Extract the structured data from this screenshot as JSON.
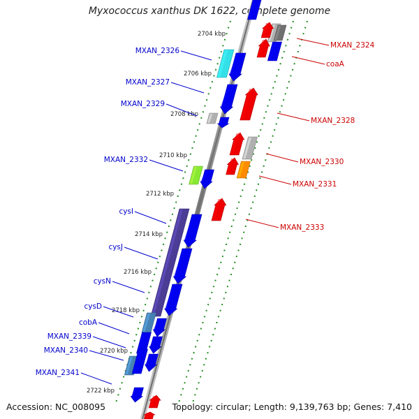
{
  "title": "Myxococcus xanthus DK 1622, complete genome",
  "footer": {
    "accession": "Accession: NC_008095",
    "summary": "Topology: circular; Length: 9,139,763 bp; Genes: 7,410"
  },
  "ticks": [
    "2704 kbp",
    "2706 kbp",
    "2708 kbp",
    "2710 kbp",
    "2712 kbp",
    "2714 kbp",
    "2716 kbp",
    "2718 kbp",
    "2720 kbp",
    "2722 kbp"
  ],
  "left_labels": [
    "MXAN_2326",
    "MXAN_2327",
    "MXAN_2329",
    "MXAN_2332",
    "cysI",
    "cysJ",
    "cysN",
    "cysD",
    "cobA",
    "MXAN_2339",
    "MXAN_2340",
    "MXAN_2341"
  ],
  "right_labels": [
    "MXAN_2324",
    "coaA",
    "MXAN_2328",
    "MXAN_2330",
    "MXAN_2331",
    "MXAN_2333"
  ],
  "colors": {
    "forward_gene": "#0000ee",
    "reverse_gene": "#ee0000",
    "left_label": "#0000cc",
    "right_label": "#cc0000",
    "guide_dots": "#228b22",
    "backbone": "#888888",
    "cyan_gene": "#33e0e8",
    "lime_gene": "#88e833",
    "orange_gene": "#ff8c00",
    "purple_gene": "#4b3c96",
    "steel_gene": "#4682b4",
    "gray_gene": "#b0b0b0",
    "dark_gray_gene": "#707070"
  }
}
